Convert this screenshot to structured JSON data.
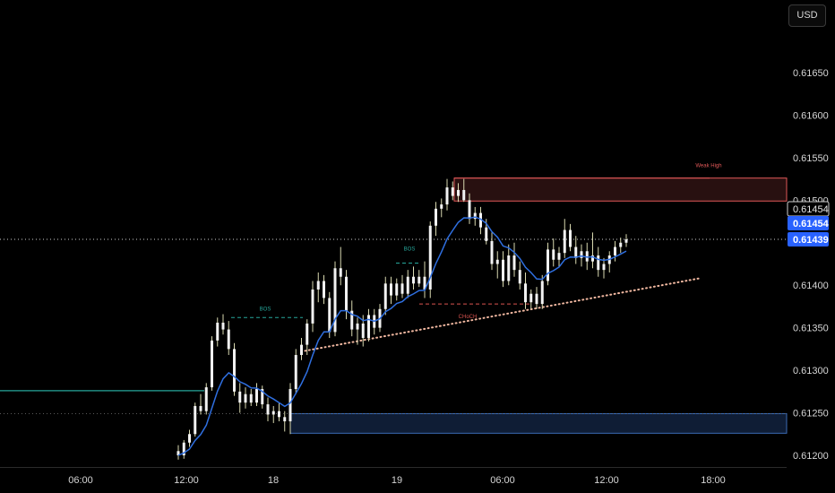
{
  "currency_button": "USD",
  "chart_data": {
    "type": "candlestick",
    "title": "",
    "ylim": [
      0.61195,
      0.61695
    ],
    "y_ticks": [
      "0.61650",
      "0.61600",
      "0.61550",
      "0.61500",
      "0.61450",
      "0.61400",
      "0.61350",
      "0.61300",
      "0.61250",
      "0.61200"
    ],
    "x_ticks": [
      "06:00",
      "12:00",
      "18",
      "19",
      "06:00",
      "12:00",
      "18:00"
    ],
    "price_badges": [
      {
        "value": "0.61454",
        "style": "outline"
      },
      {
        "value": "0.61454",
        "style": "filled"
      },
      {
        "value": "0.61439",
        "style": "filled"
      }
    ],
    "annotations": {
      "bos_1": "BOS",
      "bos_2": "BOS",
      "choch": "CHoCH",
      "weak_high": "Weak High"
    },
    "colors": {
      "background": "#000000",
      "candle": "#f2f2f2",
      "ema": "#2f6fe0",
      "supply_zone": "#e05858",
      "demand_zone": "#2a5298",
      "choch": "#d9534f",
      "bos": "#26a69a",
      "trendline": "#f0b7a0"
    },
    "ohlc": [
      [
        0.61205,
        0.61212,
        0.61195,
        0.612
      ],
      [
        0.612,
        0.61218,
        0.61196,
        0.61215
      ],
      [
        0.61215,
        0.6123,
        0.6121,
        0.61225
      ],
      [
        0.61225,
        0.61262,
        0.61222,
        0.61258
      ],
      [
        0.61258,
        0.61272,
        0.61248,
        0.61252
      ],
      [
        0.61252,
        0.61285,
        0.61248,
        0.6128
      ],
      [
        0.6128,
        0.6134,
        0.61276,
        0.61335
      ],
      [
        0.61335,
        0.61362,
        0.61328,
        0.61356
      ],
      [
        0.61356,
        0.61366,
        0.61342,
        0.61348
      ],
      [
        0.61348,
        0.61358,
        0.61318,
        0.61325
      ],
      [
        0.61325,
        0.61332,
        0.6127,
        0.61275
      ],
      [
        0.61275,
        0.61285,
        0.6125,
        0.61262
      ],
      [
        0.61262,
        0.6128,
        0.61255,
        0.61272
      ],
      [
        0.61272,
        0.61278,
        0.61258,
        0.61262
      ],
      [
        0.61262,
        0.61285,
        0.61258,
        0.61278
      ],
      [
        0.61278,
        0.61282,
        0.61255,
        0.6126
      ],
      [
        0.6126,
        0.61268,
        0.6124,
        0.61248
      ],
      [
        0.61248,
        0.61258,
        0.61238,
        0.61252
      ],
      [
        0.61252,
        0.61262,
        0.6124,
        0.61245
      ],
      [
        0.61245,
        0.61252,
        0.61228,
        0.6124
      ],
      [
        0.6124,
        0.61285,
        0.61225,
        0.61278
      ],
      [
        0.61278,
        0.61325,
        0.61272,
        0.61318
      ],
      [
        0.61318,
        0.61338,
        0.61312,
        0.6133
      ],
      [
        0.6133,
        0.6136,
        0.61318,
        0.61355
      ],
      [
        0.61355,
        0.61405,
        0.61345,
        0.61395
      ],
      [
        0.61395,
        0.61415,
        0.6138,
        0.61405
      ],
      [
        0.61405,
        0.61412,
        0.61378,
        0.61385
      ],
      [
        0.61385,
        0.61392,
        0.61338,
        0.61345
      ],
      [
        0.61345,
        0.61428,
        0.6134,
        0.6142
      ],
      [
        0.6142,
        0.61445,
        0.614,
        0.6141
      ],
      [
        0.6141,
        0.61418,
        0.6136,
        0.6137
      ],
      [
        0.6137,
        0.61382,
        0.6134,
        0.61348
      ],
      [
        0.61348,
        0.61362,
        0.6133,
        0.61355
      ],
      [
        0.61355,
        0.61365,
        0.61328,
        0.61338
      ],
      [
        0.61338,
        0.61372,
        0.61334,
        0.61365
      ],
      [
        0.61365,
        0.61372,
        0.61342,
        0.6135
      ],
      [
        0.6135,
        0.61378,
        0.61345,
        0.61372
      ],
      [
        0.61372,
        0.6141,
        0.61365,
        0.61402
      ],
      [
        0.61402,
        0.6141,
        0.61378,
        0.61388
      ],
      [
        0.61388,
        0.61408,
        0.61382,
        0.61402
      ],
      [
        0.61402,
        0.61412,
        0.61385,
        0.6139
      ],
      [
        0.6139,
        0.61418,
        0.61385,
        0.6141
      ],
      [
        0.6141,
        0.61422,
        0.61395,
        0.61402
      ],
      [
        0.61402,
        0.61418,
        0.61398,
        0.6141
      ],
      [
        0.6141,
        0.61428,
        0.61385,
        0.61395
      ],
      [
        0.61395,
        0.61475,
        0.61385,
        0.6147
      ],
      [
        0.6147,
        0.61498,
        0.61458,
        0.6149
      ],
      [
        0.6149,
        0.61502,
        0.6148,
        0.61495
      ],
      [
        0.61495,
        0.61525,
        0.61488,
        0.61515
      ],
      [
        0.61515,
        0.61522,
        0.615,
        0.61505
      ],
      [
        0.61505,
        0.6152,
        0.61498,
        0.61512
      ],
      [
        0.61512,
        0.61525,
        0.61498,
        0.615
      ],
      [
        0.615,
        0.61508,
        0.61472,
        0.61478
      ],
      [
        0.61478,
        0.61492,
        0.6147,
        0.61485
      ],
      [
        0.61485,
        0.61492,
        0.6146,
        0.61468
      ],
      [
        0.61468,
        0.61478,
        0.61448,
        0.61452
      ],
      [
        0.61452,
        0.61462,
        0.61418,
        0.61425
      ],
      [
        0.61425,
        0.6144,
        0.61408,
        0.6143
      ],
      [
        0.6143,
        0.6144,
        0.61398,
        0.61405
      ],
      [
        0.61405,
        0.61448,
        0.614,
        0.61435
      ],
      [
        0.61435,
        0.6145,
        0.6141,
        0.61418
      ],
      [
        0.61418,
        0.61428,
        0.61395,
        0.61402
      ],
      [
        0.61402,
        0.61415,
        0.61372,
        0.6138
      ],
      [
        0.6138,
        0.61395,
        0.61372,
        0.6139
      ],
      [
        0.6139,
        0.61398,
        0.61372,
        0.61378
      ],
      [
        0.61378,
        0.61412,
        0.61372,
        0.61405
      ],
      [
        0.61405,
        0.6145,
        0.614,
        0.61442
      ],
      [
        0.61442,
        0.61455,
        0.61422,
        0.6143
      ],
      [
        0.6143,
        0.61445,
        0.61422,
        0.61438
      ],
      [
        0.61438,
        0.61478,
        0.61432,
        0.61465
      ],
      [
        0.61465,
        0.61472,
        0.6144,
        0.61445
      ],
      [
        0.61445,
        0.61458,
        0.61425,
        0.61432
      ],
      [
        0.61432,
        0.61448,
        0.61422,
        0.6144
      ],
      [
        0.6144,
        0.6145,
        0.61418,
        0.61428
      ],
      [
        0.61428,
        0.61462,
        0.6142,
        0.61435
      ],
      [
        0.61435,
        0.61445,
        0.6141,
        0.61418
      ],
      [
        0.61418,
        0.61432,
        0.61408,
        0.61425
      ],
      [
        0.61425,
        0.6144,
        0.61415,
        0.61435
      ],
      [
        0.61435,
        0.61452,
        0.61428,
        0.61445
      ],
      [
        0.61445,
        0.61456,
        0.61438,
        0.6145
      ],
      [
        0.6145,
        0.6146,
        0.61445,
        0.61454
      ]
    ]
  }
}
